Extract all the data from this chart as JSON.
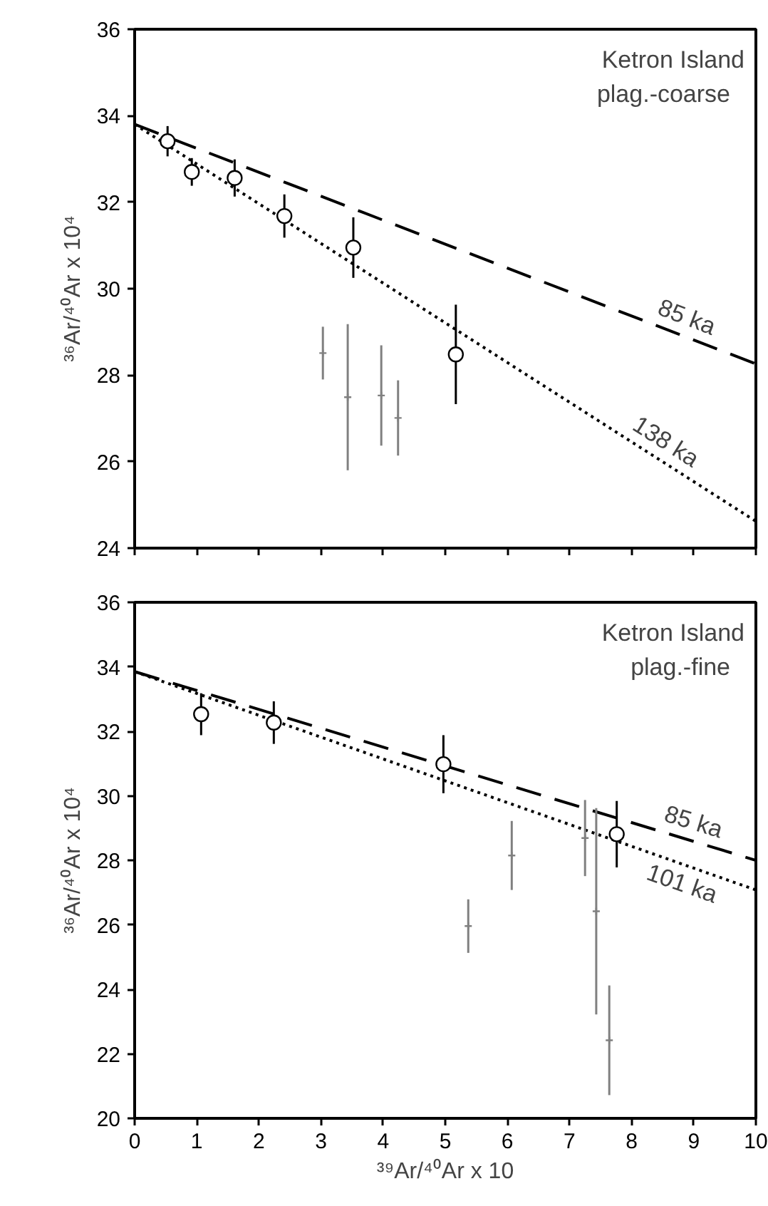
{
  "chart_data": [
    {
      "type": "scatter",
      "title": "Ketron Island",
      "subtitle": "plag.-coarse",
      "ylabel": "³⁶Ar/⁴⁰Ar x 10⁴",
      "xlim": [
        0,
        10
      ],
      "ylim": [
        24,
        36
      ],
      "xticks": [
        0,
        1,
        2,
        3,
        4,
        5,
        6,
        7,
        8,
        9,
        10
      ],
      "yticks": [
        24,
        26,
        28,
        30,
        32,
        34,
        36
      ],
      "tick_labels": "y",
      "grid": false,
      "series": [
        {
          "type": "line",
          "x": [
            0,
            10
          ],
          "values": [
            33.8,
            28.26
          ],
          "color": "#000000",
          "line_style": "dashed"
        },
        {
          "type": "line",
          "x": [
            0,
            10
          ],
          "values": [
            33.8,
            24.62
          ],
          "color": "#000000",
          "line_style": "dotted"
        },
        {
          "x": [
            0.53,
            0.92,
            1.61,
            2.41,
            3.52,
            5.17
          ],
          "values": [
            33.41,
            32.7,
            32.56,
            31.68,
            30.95,
            28.48
          ],
          "errors": [
            0.35,
            0.32,
            0.43,
            0.5,
            0.7,
            1.15
          ],
          "color": "#000000",
          "marker": "circle"
        },
        {
          "x": [
            3.03,
            3.43,
            3.97,
            4.24
          ],
          "values": [
            28.51,
            27.49,
            27.53,
            27.01
          ],
          "errors": [
            0.61,
            1.69,
            1.16,
            0.87
          ],
          "color": "#808080",
          "marker": "cross"
        }
      ],
      "annotations": [
        {
          "text": "85 ka",
          "x": 8.78,
          "y": 28.94
        },
        {
          "text": "138 ka",
          "x": 8.39,
          "y": 26.1
        }
      ]
    },
    {
      "type": "scatter",
      "title": "Ketron Island",
      "subtitle": "plag.-fine",
      "xlabel": "³⁹Ar/⁴⁰Ar x 10",
      "ylabel": "³⁶Ar/⁴⁰Ar x 10⁴",
      "xlim": [
        0,
        10
      ],
      "ylim": [
        20,
        36
      ],
      "xticks": [
        0,
        1,
        2,
        3,
        4,
        5,
        6,
        7,
        8,
        9,
        10
      ],
      "yticks": [
        20,
        22,
        24,
        26,
        28,
        30,
        32,
        34,
        36
      ],
      "grid": false,
      "series": [
        {
          "type": "line",
          "x": [
            0,
            10
          ],
          "values": [
            33.85,
            28.0
          ],
          "color": "#000000",
          "line_style": "dashed"
        },
        {
          "type": "line",
          "x": [
            0,
            10
          ],
          "values": [
            33.85,
            27.08
          ],
          "color": "#000000",
          "line_style": "dotted"
        },
        {
          "x": [
            1.07,
            2.24,
            4.97,
            7.76
          ],
          "values": [
            32.53,
            32.27,
            30.98,
            28.81
          ],
          "errors": [
            0.65,
            0.66,
            0.9,
            1.03
          ],
          "color": "#000000",
          "marker": "circle"
        },
        {
          "x": [
            5.37,
            6.07,
            7.25,
            7.43,
            7.64
          ],
          "values": [
            25.96,
            28.15,
            28.69,
            26.42,
            22.42
          ],
          "errors": [
            0.83,
            1.07,
            1.18,
            3.2,
            1.7
          ],
          "color": "#808080",
          "marker": "cross"
        }
      ],
      "annotations": [
        {
          "text": "85 ka",
          "x": 8.91,
          "y": 28.64
        },
        {
          "text": "101 ka",
          "x": 8.91,
          "y": 27.82
        }
      ]
    }
  ]
}
